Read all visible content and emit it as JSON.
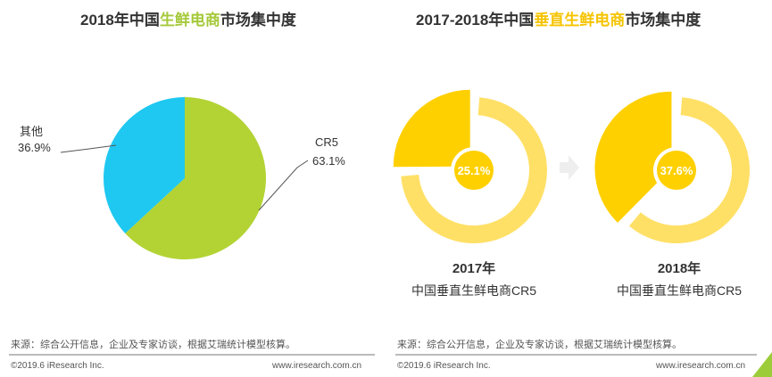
{
  "titles": {
    "left_pre": "2018年中国",
    "left_hl": "生鲜电商",
    "left_post": "市场集中度",
    "right_pre": "2017-2018年中国",
    "right_hl": "垂直生鲜电商",
    "right_post": "市场集中度"
  },
  "chart_data": [
    {
      "type": "pie",
      "title": "2018年中国生鲜电商市场集中度",
      "slices": [
        {
          "name": "CR5",
          "value": 63.1,
          "label": "63.1%",
          "color": "#B3D334"
        },
        {
          "name": "其他",
          "value": 36.9,
          "label": "36.9%",
          "color": "#1FC8F0"
        }
      ]
    },
    {
      "type": "pie",
      "title": "2017-2018年中国垂直生鲜电商市场集中度",
      "donuts": [
        {
          "year": "2017年",
          "subtitle": "中国垂直生鲜电商CR5",
          "value": 25.1,
          "label": "25.1%"
        },
        {
          "year": "2018年",
          "subtitle": "中国垂直生鲜电商CR5",
          "value": 37.6,
          "label": "37.6%"
        }
      ],
      "colors": {
        "highlight": "#FFD000",
        "rest": "#FFE066"
      }
    }
  ],
  "footer": {
    "source": "来源：综合公开信息，企业及专家访谈，根据艾瑞统计模型核算。",
    "copyright": "©2019.6 iResearch Inc.",
    "url": "www.iresearch.com.cn"
  }
}
